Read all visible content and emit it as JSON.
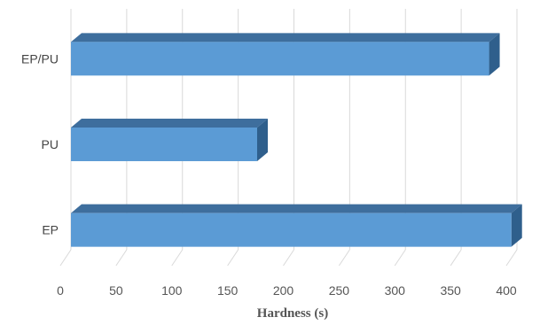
{
  "chart_data": {
    "type": "bar",
    "orientation": "horizontal",
    "style": "3d",
    "categories": [
      "EP/PU",
      "PU",
      "EP"
    ],
    "values": [
      375,
      167,
      395
    ],
    "xlabel": "Hardness (s)",
    "ylabel": "",
    "xlim": [
      0,
      400
    ],
    "xticks": [
      "0",
      "50",
      "100",
      "150",
      "200",
      "250",
      "300",
      "350",
      "400"
    ],
    "grid": true,
    "legend": "none",
    "colors": {
      "bar_front": "#5B9BD5",
      "bar_top": "#3E6E9D",
      "bar_side": "#2F5F8C",
      "grid": "#D9D9D9"
    }
  }
}
